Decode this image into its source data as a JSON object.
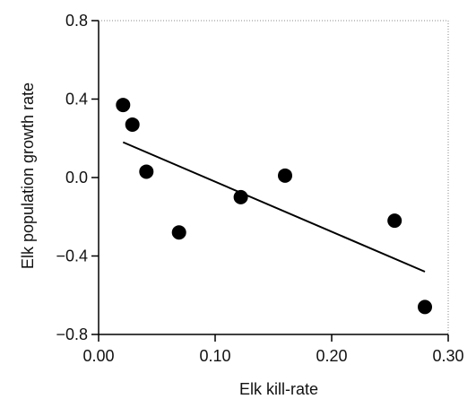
{
  "chart_data": {
    "type": "scatter",
    "title": "",
    "xlabel": "Elk kill-rate",
    "ylabel": "Elk population growth rate",
    "xlim": [
      0.0,
      0.3
    ],
    "ylim": [
      -0.8,
      0.8
    ],
    "x_ticks": [
      0.0,
      0.1,
      0.2,
      0.3
    ],
    "x_tick_labels": [
      "0.00",
      "0.10",
      "0.20",
      "0.30"
    ],
    "y_ticks": [
      -0.8,
      -0.4,
      0.0,
      0.4,
      0.8
    ],
    "y_tick_labels": [
      "−0.8",
      "−0.4",
      "0.0",
      "0.4",
      "0.8"
    ],
    "grid": false,
    "points": [
      {
        "x": 0.021,
        "y": 0.37
      },
      {
        "x": 0.029,
        "y": 0.27
      },
      {
        "x": 0.041,
        "y": 0.03
      },
      {
        "x": 0.069,
        "y": -0.28
      },
      {
        "x": 0.122,
        "y": -0.1
      },
      {
        "x": 0.16,
        "y": 0.01
      },
      {
        "x": 0.254,
        "y": -0.22
      },
      {
        "x": 0.28,
        "y": -0.66
      }
    ],
    "fit_line": {
      "x": [
        0.021,
        0.28
      ],
      "y": [
        0.18,
        -0.48
      ]
    },
    "colors": {
      "marker": "#000000",
      "line": "#000000",
      "axis": "#000000"
    }
  }
}
